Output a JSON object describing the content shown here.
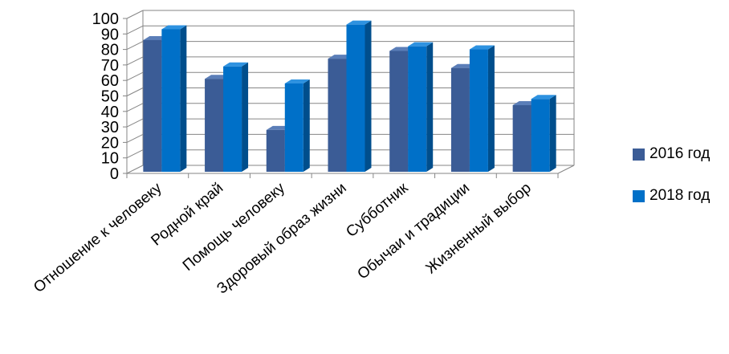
{
  "chart_data": {
    "type": "bar",
    "title": "",
    "xlabel": "",
    "ylabel": "",
    "categories": [
      "Отношение к человеку",
      "Родной край",
      "Помощь человеку",
      "Здоровый образ жизни",
      "Субботник",
      "Обычаи и традиции",
      "Жизненный выбор"
    ],
    "series": [
      {
        "name": "2016 год",
        "values": [
          85,
          60,
          27,
          73,
          78,
          67,
          43
        ],
        "color": "#3B5C96",
        "side_color": "#253C6A",
        "top_color": "#5B7EB8"
      },
      {
        "name": "2018 год",
        "values": [
          92,
          68,
          57,
          95,
          81,
          79,
          47
        ],
        "color": "#0070C8",
        "side_color": "#004E8C",
        "top_color": "#2E92E0"
      }
    ],
    "ylim": [
      0,
      100
    ],
    "yticks": [
      0,
      10,
      20,
      30,
      40,
      50,
      60,
      70,
      80,
      90,
      100
    ],
    "grid": true,
    "legend_position": "right",
    "style": "3d-clustered-column"
  }
}
